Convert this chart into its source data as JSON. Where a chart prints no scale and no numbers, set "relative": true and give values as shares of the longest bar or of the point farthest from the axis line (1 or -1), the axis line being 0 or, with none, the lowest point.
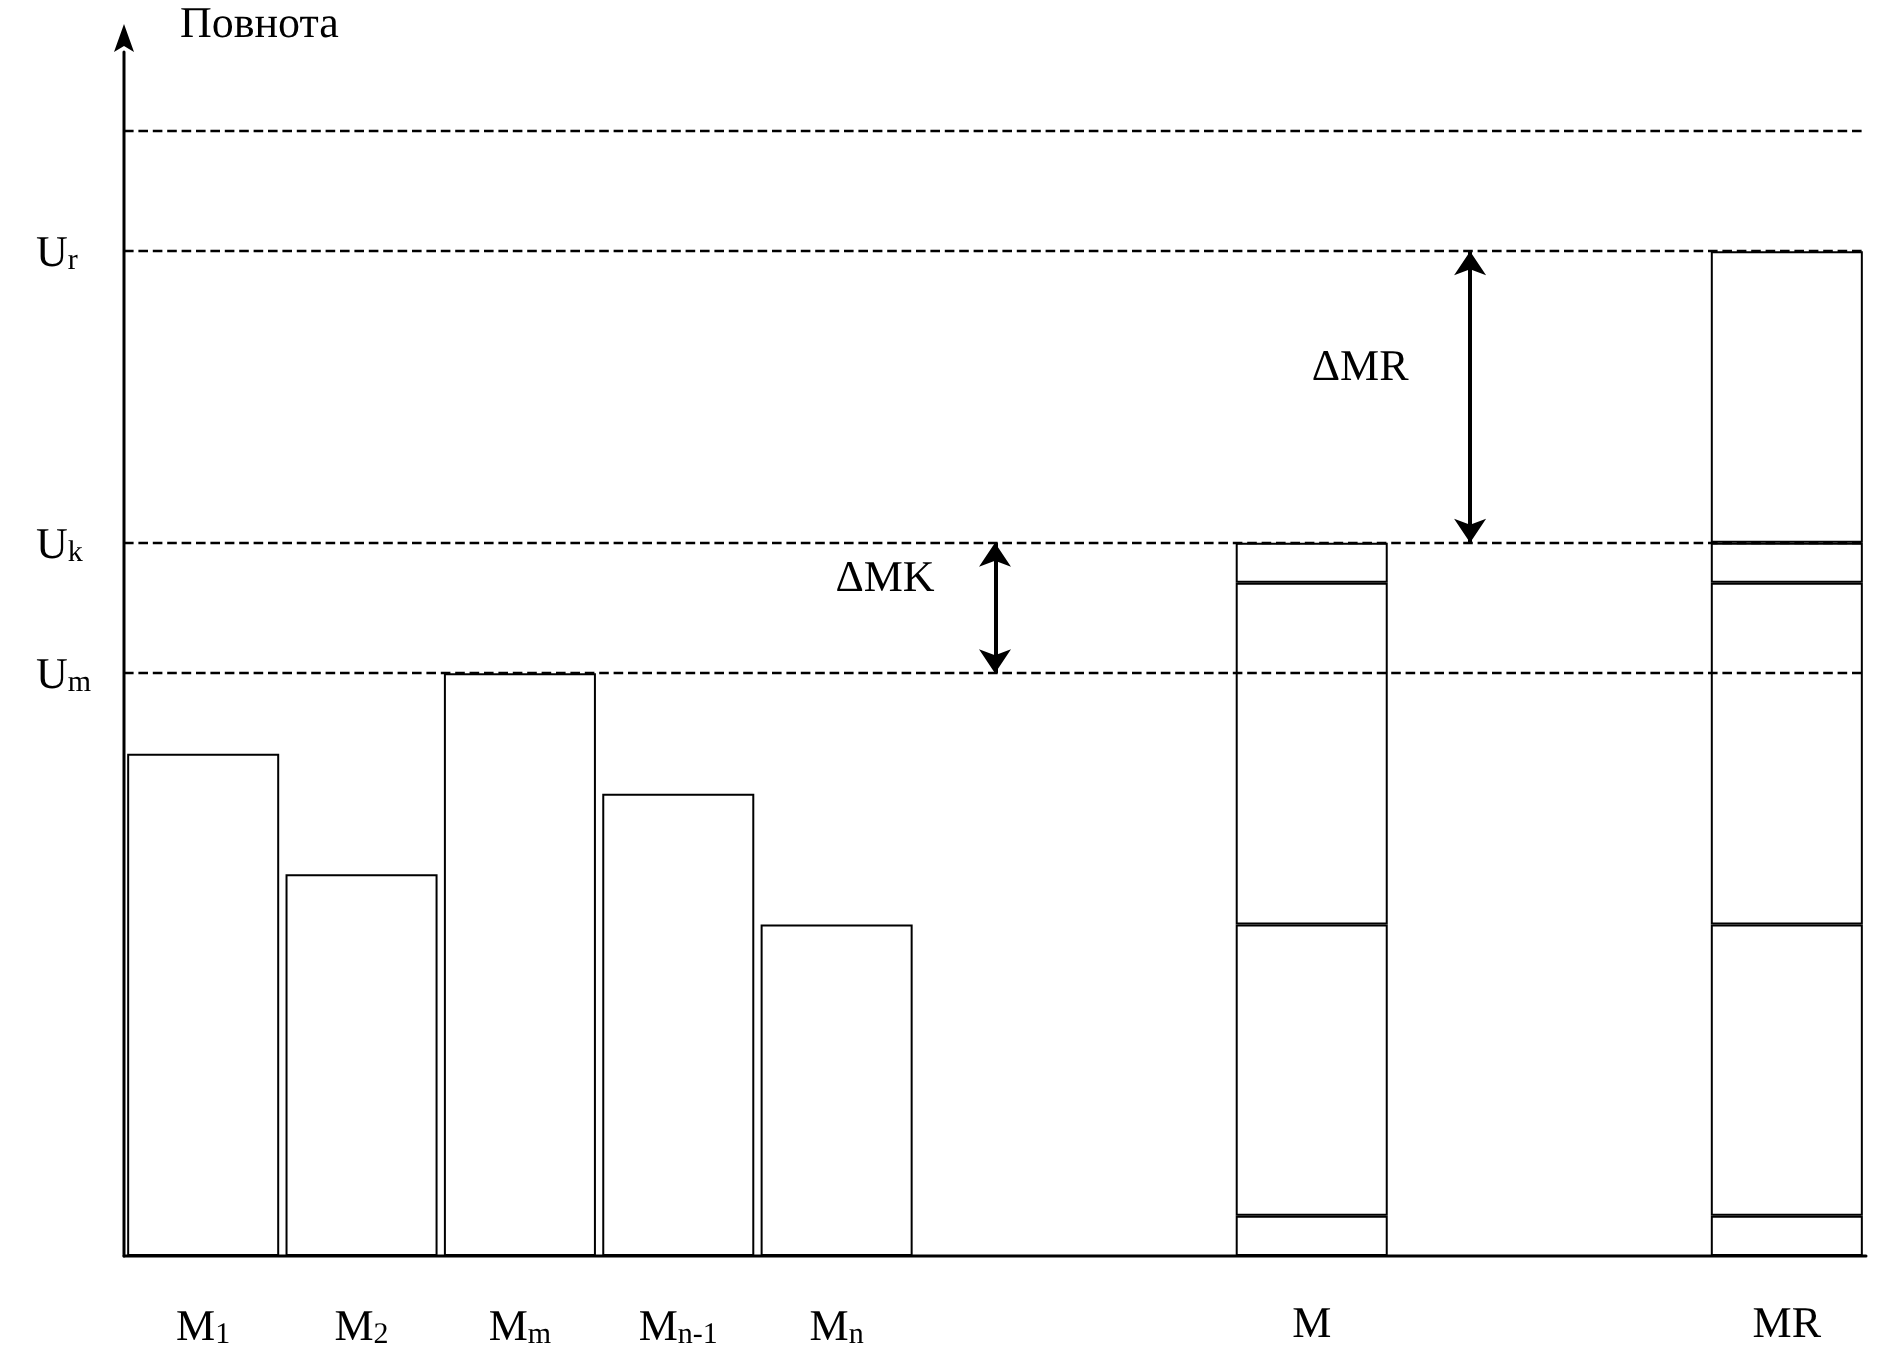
{
  "chart_data": {
    "type": "bar",
    "relative": true,
    "stacked": true,
    "ylabel": "Повнота",
    "categories": [
      "M$_{1}$",
      "M$_{2}$",
      "M$_{m}$",
      "M$_{n-1}$",
      "M$_{n}$",
      null,
      null,
      "M",
      null,
      null,
      "MR"
    ],
    "series": [
      {
        "color": "#ffffff",
        "values": [
          0.5,
          0.38,
          0.58,
          0.46,
          0.33,
          null,
          null,
          0.04,
          null,
          null,
          0.04
        ]
      },
      {
        "color": "#ffffff",
        "values": [
          null,
          null,
          null,
          null,
          null,
          null,
          null,
          0.29,
          null,
          null,
          0.29
        ]
      },
      {
        "color": "#ffffff",
        "values": [
          null,
          null,
          null,
          null,
          null,
          null,
          null,
          0.34,
          null,
          null,
          0.34
        ]
      },
      {
        "color": "#ffffff",
        "values": [
          null,
          null,
          null,
          null,
          null,
          null,
          null,
          0.04,
          null,
          null,
          0.04
        ]
      },
      {
        "color": "#ffffff",
        "values": [
          null,
          null,
          null,
          null,
          null,
          null,
          null,
          null,
          null,
          null,
          0.29
        ]
      }
    ],
    "ref_lines": [
      {
        "axis": "y",
        "value": 1.12,
        "label": null,
        "line_style": "dashed"
      },
      {
        "axis": "y",
        "value": 1,
        "label": "U$_{r}$",
        "line_style": "dashed"
      },
      {
        "axis": "y",
        "value": 0.71,
        "label": "U$_{k}$",
        "line_style": "dashed"
      },
      {
        "axis": "y",
        "value": 0.58,
        "label": "U$_{m}$",
        "line_style": "dashed"
      }
    ],
    "annotations": [
      "ΔMK",
      "ΔMR"
    ],
    "grid": false
  }
}
